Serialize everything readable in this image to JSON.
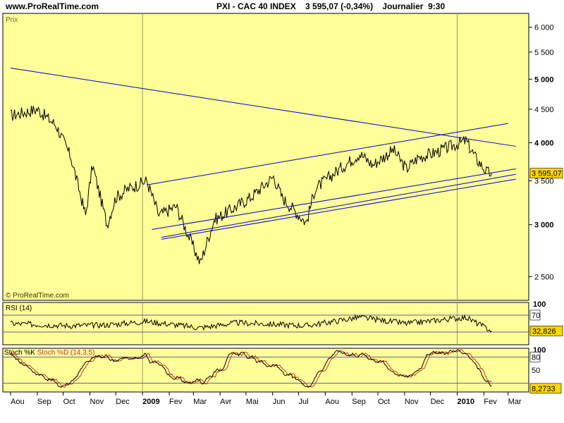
{
  "header": {
    "site": "www.ProRealTime.com",
    "title": "PXI - CAC 40 INDEX    3 595,07 (-0,34%)    Journalier  9:30"
  },
  "colors": {
    "background": "#ffff99",
    "price_line": "#000000",
    "trendline": "#0000cc",
    "stoch_d": "#cc3333",
    "last_value_box": "#ffd700"
  },
  "chart_data": [
    {
      "type": "line",
      "title": "Prix",
      "scale": "log",
      "ylim": [
        2300,
        6300
      ],
      "yticks": [
        2500,
        3000,
        3500,
        4000,
        4500,
        5000,
        5500,
        6000
      ],
      "ytick_labels": [
        "2 500",
        "3 000",
        "3 500",
        "4 000",
        "4 500",
        "5 000",
        "5 500",
        "6 000"
      ],
      "bold_ticks": [
        "5 000",
        "4 000",
        "3 000"
      ],
      "grid": false,
      "watermark": "© ProRealTime.com",
      "last_value": 3595.07,
      "last_value_label": "3 595,07",
      "x_dates": [
        "2008-08-01",
        "2008-09-01",
        "2008-09-23",
        "2008-10-10",
        "2008-10-27",
        "2008-11-04",
        "2008-11-21",
        "2008-12-01",
        "2008-12-15",
        "2009-01-06",
        "2009-01-20",
        "2009-02-09",
        "2009-03-09",
        "2009-03-25",
        "2009-04-20",
        "2009-05-06",
        "2009-06-02",
        "2009-06-12",
        "2009-07-10",
        "2009-07-20",
        "2009-08-12",
        "2009-09-10",
        "2009-09-25",
        "2009-10-19",
        "2009-11-03",
        "2009-11-17",
        "2009-12-03",
        "2010-01-11",
        "2010-01-22",
        "2010-02-05",
        "2010-02-10"
      ],
      "y_values": [
        4400,
        4500,
        4250,
        3800,
        3100,
        3700,
        3000,
        3300,
        3400,
        3500,
        3100,
        3200,
        2620,
        3050,
        3200,
        3300,
        3550,
        3300,
        3020,
        3400,
        3600,
        3850,
        3700,
        3900,
        3650,
        3800,
        3850,
        4030,
        3800,
        3600,
        3595.07
      ],
      "trendlines": [
        {
          "start": [
            "2008-08-01",
            5200
          ],
          "end": [
            "2010-03-10",
            3950
          ]
        },
        {
          "start": [
            "2009-01-06",
            3450
          ],
          "end": [
            "2010-03-01",
            4280
          ]
        },
        {
          "start": [
            "2009-01-12",
            2950
          ],
          "end": [
            "2010-03-10",
            3650
          ]
        },
        {
          "start": [
            "2009-01-23",
            2870
          ],
          "end": [
            "2010-03-10",
            3580
          ]
        },
        {
          "start": [
            "2009-01-23",
            2850
          ],
          "end": [
            "2010-03-10",
            3520
          ]
        }
      ]
    },
    {
      "type": "line",
      "title": "RSI (14)",
      "ylim": [
        0,
        100
      ],
      "levels": [
        30,
        70
      ],
      "ytick_labels": [
        "100",
        "70"
      ],
      "last_value": 32.826,
      "last_value_label": "32,826",
      "x_dates": [
        "2008-08-01",
        "2008-10-10",
        "2008-11-21",
        "2009-01-06",
        "2009-03-09",
        "2009-04-20",
        "2009-07-10",
        "2009-09-10",
        "2009-11-03",
        "2010-01-11",
        "2010-02-10"
      ],
      "y_values": [
        50,
        45,
        47,
        55,
        40,
        52,
        45,
        65,
        50,
        65,
        32.826
      ]
    },
    {
      "type": "line",
      "title": "Stoch %K Stoch %D (14,3,5)",
      "series": [
        {
          "name": "Stoch %K"
        },
        {
          "name": "Stoch %D (14,3,5)"
        }
      ],
      "ylim": [
        0,
        100
      ],
      "levels": [
        20,
        80
      ],
      "ytick_labels": [
        "100",
        "80",
        "50"
      ],
      "last_value": 8.2733,
      "last_value_label": "8,2733",
      "x_dates": [
        "2008-08-01",
        "2008-09-01",
        "2008-10-10",
        "2008-11-04",
        "2008-12-01",
        "2009-01-06",
        "2009-02-09",
        "2009-03-09",
        "2009-04-20",
        "2009-06-02",
        "2009-07-10",
        "2009-08-12",
        "2009-09-25",
        "2009-11-03",
        "2009-12-03",
        "2010-01-11",
        "2010-02-10"
      ],
      "y_values": [
        85,
        40,
        15,
        90,
        70,
        80,
        30,
        20,
        90,
        60,
        10,
        95,
        80,
        30,
        90,
        95,
        8.2733
      ]
    }
  ],
  "x_axis": {
    "tick_dates": [
      "2008-08-01",
      "2008-09-01",
      "2008-10-01",
      "2008-11-01",
      "2008-12-01",
      "2009-01-01",
      "2009-02-01",
      "2009-03-01",
      "2009-04-01",
      "2009-05-01",
      "2009-06-01",
      "2009-07-01",
      "2009-08-01",
      "2009-09-01",
      "2009-10-01",
      "2009-11-01",
      "2009-12-01",
      "2010-01-01",
      "2010-02-01",
      "2010-03-01"
    ],
    "tick_labels": [
      "Aou",
      "Sep",
      "Oct",
      "Nov",
      "Dec",
      "2009",
      "Fev",
      "Mar",
      "Avr",
      "Mai",
      "Jun",
      "Jul",
      "Aou",
      "Sep",
      "Oct",
      "Nov",
      "Dec",
      "2010",
      "Fev",
      "Mar"
    ],
    "year_labels": [
      "2009",
      "2010"
    ]
  }
}
